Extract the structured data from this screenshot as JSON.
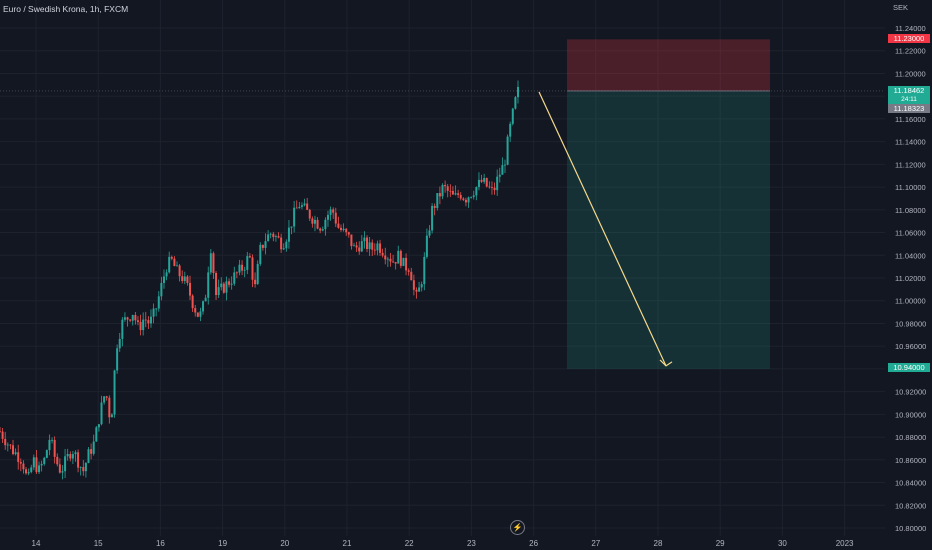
{
  "header": {
    "title": "Euro / Swedish Krona, 1h, FXCM",
    "currency": "SEK"
  },
  "price_tags": {
    "stop": "11.23000",
    "last": "11.18462",
    "countdown": "24:11",
    "prev": "11.18323",
    "target": "10.94000"
  },
  "events_icon": "lightning-icon",
  "colors": {
    "background": "#131722",
    "up": "#26a69a",
    "down": "#ef5350",
    "stop_zone": "#f23645",
    "target_zone": "#22ab94",
    "arrow": "#f5d98a"
  },
  "chart_data": {
    "type": "candlestick",
    "title": "Euro / Swedish Krona, 1h, FXCM",
    "ylabel": "SEK",
    "ylim": [
      10.8,
      11.24
    ],
    "y_ticks": [
      "11.24000",
      "11.22000",
      "11.20000",
      "11.18000",
      "11.16000",
      "11.14000",
      "11.12000",
      "11.10000",
      "11.08000",
      "11.06000",
      "11.04000",
      "11.02000",
      "11.00000",
      "10.98000",
      "10.96000",
      "10.94000",
      "10.92000",
      "10.90000",
      "10.88000",
      "10.86000",
      "10.84000",
      "10.82000",
      "10.80000"
    ],
    "x_ticks": [
      "14",
      "15",
      "16",
      "19",
      "20",
      "21",
      "22",
      "23",
      "26",
      "27",
      "28",
      "29",
      "30",
      "2023"
    ],
    "grid": true,
    "price_path": [
      [
        0,
        10.885
      ],
      [
        2,
        10.87
      ],
      [
        4,
        10.86
      ],
      [
        5,
        10.84
      ],
      [
        6,
        10.86
      ],
      [
        7,
        10.85
      ],
      [
        8,
        10.86
      ],
      [
        9,
        10.88
      ],
      [
        10,
        10.86
      ],
      [
        11,
        10.85
      ],
      [
        12,
        10.86
      ],
      [
        13,
        10.87
      ],
      [
        14,
        10.86
      ],
      [
        15,
        10.85
      ],
      [
        16,
        10.865
      ],
      [
        17,
        10.875
      ],
      [
        18,
        10.9
      ],
      [
        19,
        10.92
      ],
      [
        19.5,
        10.91
      ],
      [
        20,
        10.89
      ],
      [
        21,
        10.96
      ],
      [
        22,
        10.98
      ],
      [
        23,
        10.985
      ],
      [
        24,
        10.99
      ],
      [
        25,
        10.975
      ],
      [
        26,
        10.985
      ],
      [
        27,
        10.98
      ],
      [
        28,
        10.99
      ],
      [
        29,
        11.01
      ],
      [
        30,
        11.03
      ],
      [
        31,
        11.035
      ],
      [
        32,
        11.025
      ],
      [
        33,
        11.02
      ],
      [
        34,
        11.01
      ],
      [
        35,
        10.995
      ],
      [
        36,
        10.985
      ],
      [
        37,
        11.0
      ],
      [
        38,
        11.05
      ],
      [
        39,
        11.005
      ],
      [
        40,
        11.01
      ],
      [
        41,
        11.015
      ],
      [
        42,
        11.02
      ],
      [
        43,
        11.025
      ],
      [
        44,
        11.03
      ],
      [
        45,
        11.04
      ],
      [
        46,
        11.01
      ],
      [
        47,
        11.045
      ],
      [
        48,
        11.055
      ],
      [
        49,
        11.06
      ],
      [
        50,
        11.055
      ],
      [
        51,
        11.05
      ],
      [
        52,
        11.06
      ],
      [
        53,
        11.075
      ],
      [
        54,
        11.085
      ],
      [
        55,
        11.08
      ],
      [
        56,
        11.075
      ],
      [
        57,
        11.07
      ],
      [
        58,
        11.065
      ],
      [
        59,
        11.075
      ],
      [
        60,
        11.08
      ],
      [
        61,
        11.065
      ],
      [
        62,
        11.06
      ],
      [
        63,
        11.055
      ],
      [
        64,
        11.045
      ],
      [
        65,
        11.05
      ],
      [
        66,
        11.05
      ],
      [
        67,
        11.045
      ],
      [
        68,
        11.05
      ],
      [
        69,
        11.045
      ],
      [
        70,
        11.04
      ],
      [
        71,
        11.035
      ],
      [
        72,
        11.04
      ],
      [
        73,
        11.03
      ],
      [
        74,
        11.03
      ],
      [
        75,
        11.0
      ],
      [
        76,
        11.015
      ],
      [
        77,
        11.05
      ],
      [
        78,
        11.08
      ],
      [
        79,
        11.09
      ],
      [
        80,
        11.1
      ],
      [
        81,
        11.095
      ],
      [
        82,
        11.09
      ],
      [
        83,
        11.095
      ],
      [
        84,
        11.09
      ],
      [
        85,
        11.095
      ],
      [
        86,
        11.1
      ],
      [
        87,
        11.105
      ],
      [
        88,
        11.1
      ],
      [
        89,
        11.095
      ],
      [
        90,
        11.11
      ],
      [
        91,
        11.12
      ],
      [
        92,
        11.15
      ],
      [
        93,
        11.175
      ],
      [
        93.5,
        11.184
      ]
    ],
    "position": {
      "direction": "short",
      "entry": 11.18462,
      "stop": 11.23,
      "target": 10.94
    }
  }
}
